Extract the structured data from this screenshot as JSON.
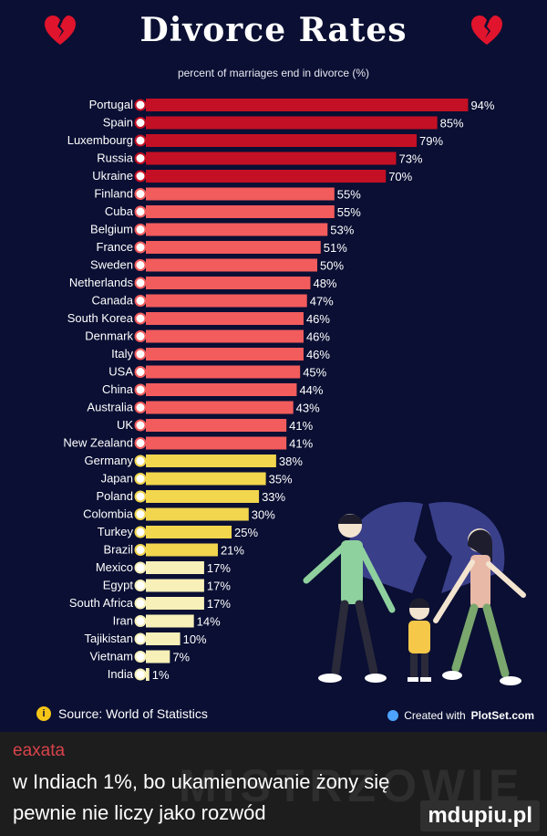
{
  "header": {
    "title": "Divorce Rates",
    "subtitle": "percent of marriages end in divorce (%)"
  },
  "footer": {
    "source": "Source: World of Statistics",
    "credit_prefix": "Created with ",
    "credit_site": "PlotSet.com"
  },
  "caption": {
    "username": "eaxata",
    "line1": "w Indiach 1%, bo ukamienowanie żony się",
    "line2": "pewnie nie liczy jako rozwód",
    "watermark": "MISTRZOWIE",
    "site": "mdupiu.pl"
  },
  "colors": {
    "background": "#0a0f33",
    "tiers": [
      "#c41024",
      "#f25c5c",
      "#f1d64e",
      "#f7f0b8"
    ]
  },
  "chart_data": {
    "type": "bar",
    "orientation": "horizontal",
    "unit": "%",
    "categories": [
      "Portugal",
      "Spain",
      "Luxembourg",
      "Russia",
      "Ukraine",
      "Finland",
      "Cuba",
      "Belgium",
      "France",
      "Sweden",
      "Netherlands",
      "Canada",
      "South Korea",
      "Denmark",
      "Italy",
      "USA",
      "China",
      "Australia",
      "UK",
      "New Zealand",
      "Germany",
      "Japan",
      "Poland",
      "Colombia",
      "Turkey",
      "Brazil",
      "Mexico",
      "Egypt",
      "South Africa",
      "Iran",
      "Tajikistan",
      "Vietnam",
      "India"
    ],
    "values": [
      94,
      85,
      79,
      73,
      70,
      55,
      55,
      53,
      51,
      50,
      48,
      47,
      46,
      46,
      46,
      45,
      44,
      43,
      41,
      41,
      38,
      35,
      33,
      30,
      25,
      21,
      17,
      17,
      17,
      14,
      10,
      7,
      1
    ],
    "color_tier": [
      0,
      0,
      0,
      0,
      0,
      1,
      1,
      1,
      1,
      1,
      1,
      1,
      1,
      1,
      1,
      1,
      1,
      1,
      1,
      1,
      2,
      2,
      2,
      2,
      2,
      2,
      3,
      3,
      3,
      3,
      3,
      3,
      3
    ],
    "flag_icons": [
      "portugal-flag",
      "spain-flag",
      "luxembourg-flag",
      "russia-flag",
      "ukraine-flag",
      "finland-flag",
      "cuba-flag",
      "belgium-flag",
      "france-flag",
      "sweden-flag",
      "netherlands-flag",
      "canada-flag",
      "south-korea-flag",
      "denmark-flag",
      "italy-flag",
      "usa-flag",
      "china-flag",
      "australia-flag",
      "uk-flag",
      "new-zealand-flag",
      "germany-flag",
      "japan-flag",
      "poland-flag",
      "colombia-flag",
      "turkey-flag",
      "brazil-flag",
      "mexico-flag",
      "egypt-flag",
      "south-africa-flag",
      "iran-flag",
      "tajikistan-flag",
      "vietnam-flag",
      "india-flag"
    ],
    "xlim": [
      0,
      100
    ],
    "grid": false,
    "legend": "none"
  }
}
